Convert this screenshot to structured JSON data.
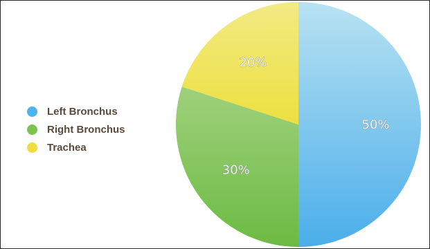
{
  "chart_data": {
    "type": "pie",
    "title": "",
    "slices": [
      {
        "name": "Left Bronchus",
        "value": 50,
        "label": "50%",
        "color": "#4db3ec"
      },
      {
        "name": "Right Bronchus",
        "value": 30,
        "label": "30%",
        "color": "#7cc44e"
      },
      {
        "name": "Trachea",
        "value": 20,
        "label": "20%",
        "color": "#eede3e"
      }
    ],
    "legend": {
      "placement": "left",
      "entries": [
        "Left Bronchus",
        "Right Bronchus",
        "Trachea"
      ]
    }
  }
}
